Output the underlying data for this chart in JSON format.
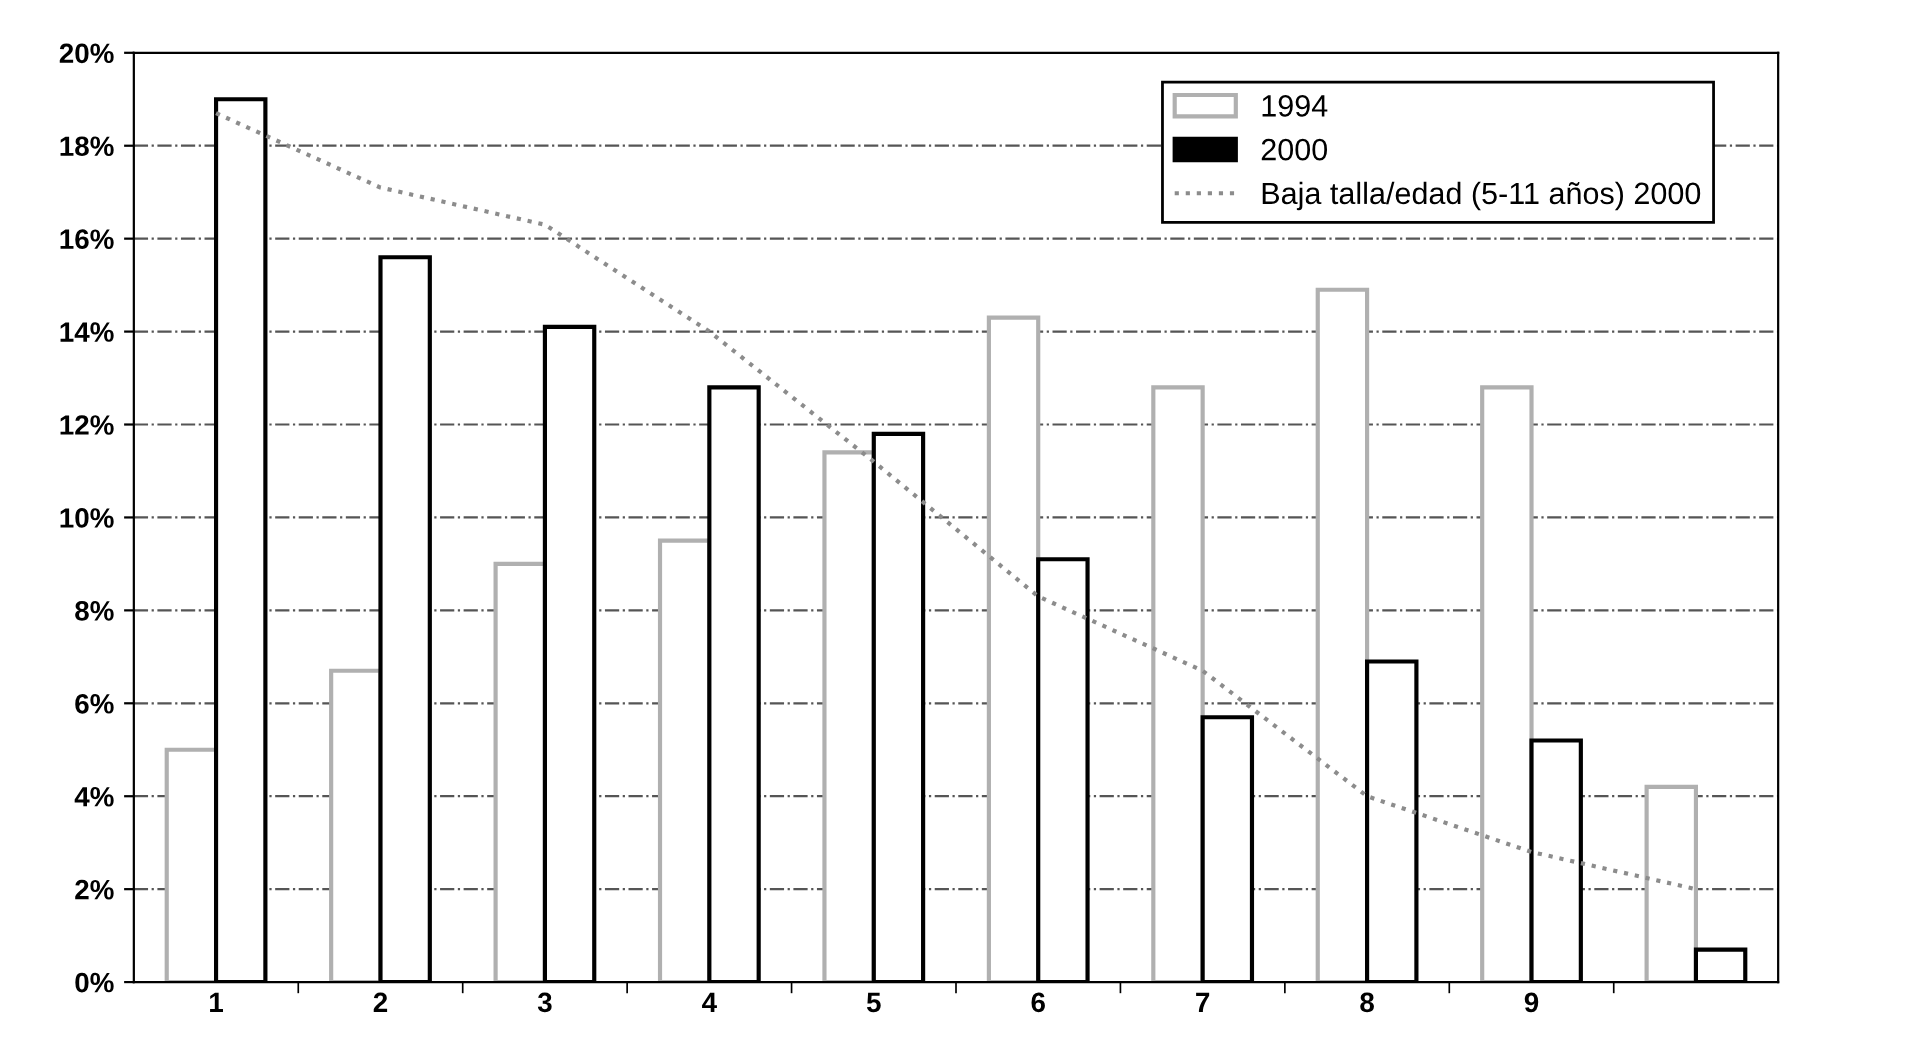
{
  "chart_data": {
    "type": "bar",
    "categories": [
      "1",
      "2",
      "3",
      "4",
      "5",
      "6",
      "7",
      "8",
      "9",
      null
    ],
    "series": [
      {
        "name": "1994",
        "color": "#b0b0b0",
        "values": [
          5.0,
          6.7,
          9.0,
          9.5,
          11.4,
          14.3,
          12.8,
          14.9,
          12.8,
          4.2
        ]
      },
      {
        "name": "2000",
        "color": "#000000",
        "values": [
          19.0,
          15.6,
          14.1,
          12.8,
          11.8,
          9.1,
          5.7,
          6.9,
          5.2,
          0.7
        ]
      },
      {
        "name": "Baja talla/edad (5-11 años) 2000",
        "type": "line",
        "color": "#8c8c8c",
        "line_style": "dotted",
        "values": [
          18.7,
          17.1,
          16.3,
          14.0,
          11.2,
          8.3,
          6.7,
          4.0,
          2.8,
          2.0
        ]
      }
    ],
    "ylim": [
      0,
      20
    ],
    "yticks": [
      {
        "value": 0,
        "label": "0%"
      },
      {
        "value": 2,
        "label": "2%"
      },
      {
        "value": 4,
        "label": "4%"
      },
      {
        "value": 6,
        "label": "6%"
      },
      {
        "value": 8,
        "label": "8%"
      },
      {
        "value": 10,
        "label": "10%"
      },
      {
        "value": 12,
        "label": "12%"
      },
      {
        "value": 14,
        "label": "14%"
      },
      {
        "value": 16,
        "label": "16%"
      },
      {
        "value": 18,
        "label": "18%"
      },
      {
        "value": 20,
        "label": "20%"
      }
    ],
    "grid": "y",
    "legend": "top right",
    "marker": "none"
  }
}
